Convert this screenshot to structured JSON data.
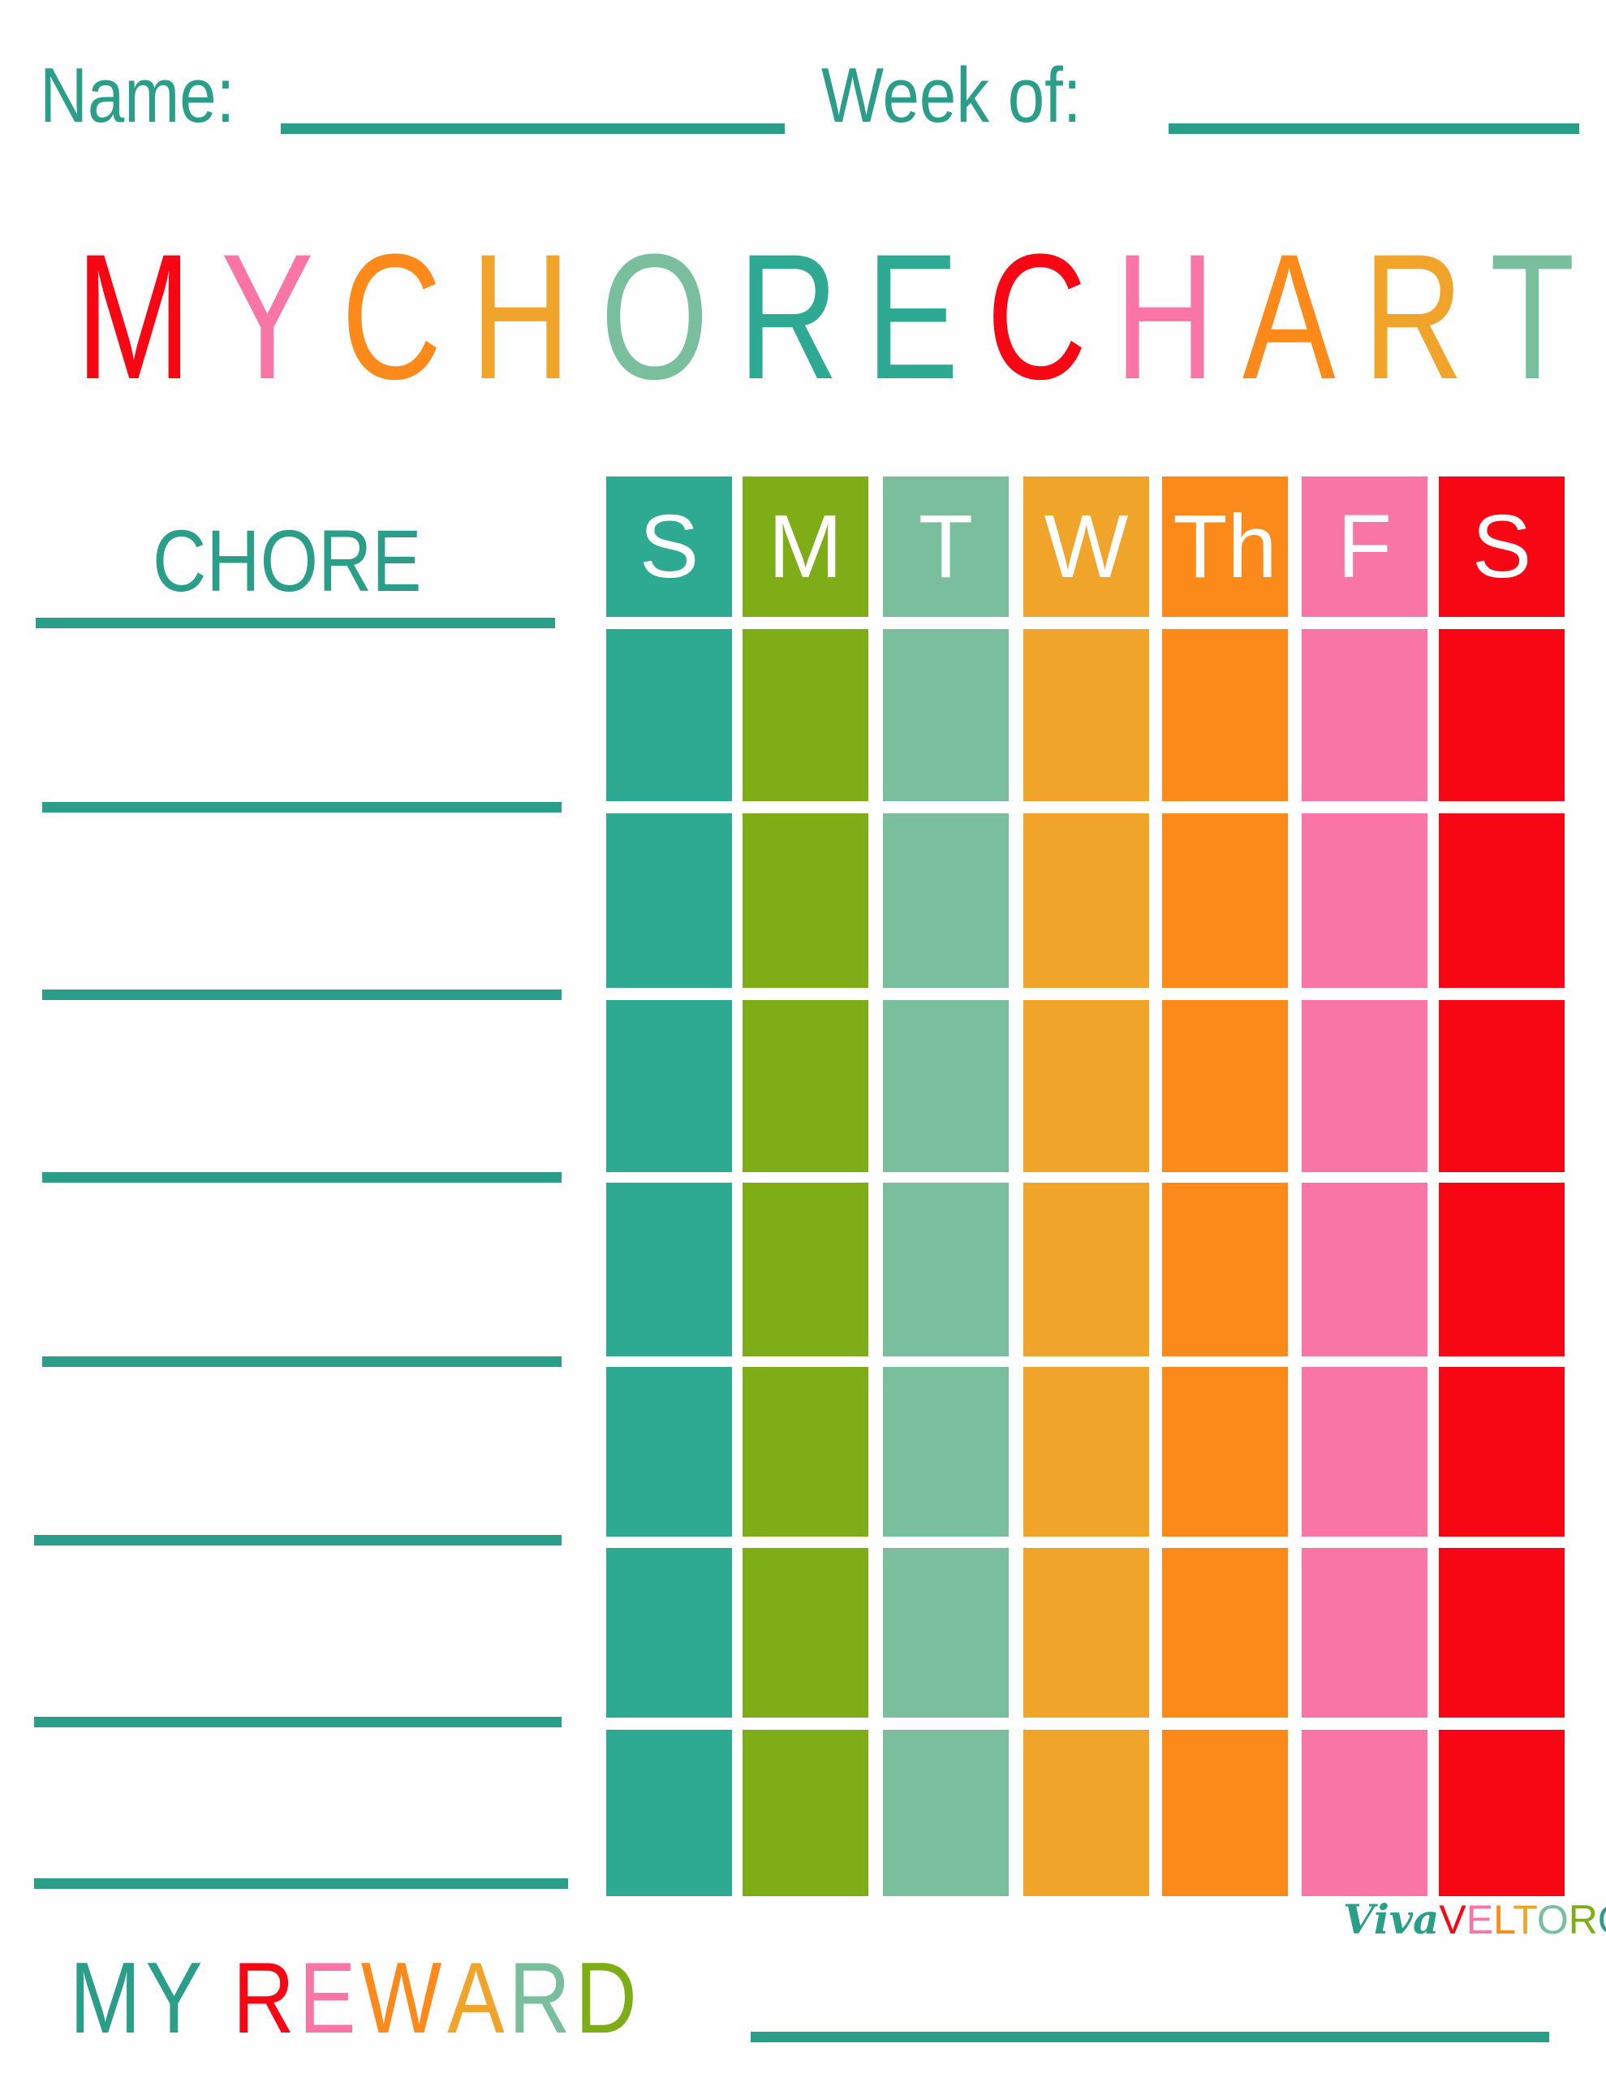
{
  "header": {
    "name_label": "Name:",
    "week_label": "Week of:"
  },
  "title_letters": [
    {
      "c": "M",
      "color": "#F70614"
    },
    {
      "c": "Y",
      "color": "#F975A6"
    },
    {
      "c": " ",
      "color": "#fff"
    },
    {
      "c": "C",
      "color": "#FC8A1B"
    },
    {
      "c": "H",
      "color": "#F0A42A"
    },
    {
      "c": "O",
      "color": "#79BF9E"
    },
    {
      "c": "R",
      "color": "#2EAA93"
    },
    {
      "c": "E",
      "color": "#2EAA93"
    },
    {
      "c": " ",
      "color": "#fff"
    },
    {
      "c": "C",
      "color": "#F70614"
    },
    {
      "c": "H",
      "color": "#F975A6"
    },
    {
      "c": "A",
      "color": "#FC8A1B"
    },
    {
      "c": "R",
      "color": "#F0A42A"
    },
    {
      "c": "T",
      "color": "#79BF9E"
    }
  ],
  "chore_header": "CHORE",
  "days": [
    {
      "label": "S",
      "color": "#2EAA93"
    },
    {
      "label": "M",
      "color": "#7FAD17"
    },
    {
      "label": "T",
      "color": "#79BF9E"
    },
    {
      "label": "W",
      "color": "#F0A42A"
    },
    {
      "label": "Th",
      "color": "#FC8A1B"
    },
    {
      "label": "F",
      "color": "#F975A6"
    },
    {
      "label": "S",
      "color": "#F70614"
    }
  ],
  "row_count": 7,
  "reward_letters": [
    {
      "c": "M",
      "color": "#2A9E88"
    },
    {
      "c": "Y",
      "color": "#2A9E88"
    },
    {
      "c": " ",
      "color": "#fff"
    },
    {
      "c": "R",
      "color": "#F70614"
    },
    {
      "c": "E",
      "color": "#F975A6"
    },
    {
      "c": "W",
      "color": "#FC8A1B"
    },
    {
      "c": "A",
      "color": "#F0A42A"
    },
    {
      "c": "R",
      "color": "#79BF9E"
    },
    {
      "c": "D",
      "color": "#7FAD17"
    }
  ],
  "logo": {
    "viva": "Viva",
    "letters": [
      {
        "c": "V",
        "color": "#F70614"
      },
      {
        "c": "E",
        "color": "#F975A6"
      },
      {
        "c": "L",
        "color": "#FC8A1B"
      },
      {
        "c": "T",
        "color": "#F0A42A"
      },
      {
        "c": "O",
        "color": "#79BF9E"
      },
      {
        "c": "R",
        "color": "#7FAD17"
      },
      {
        "c": "O",
        "color": "#2A9E88"
      }
    ]
  }
}
